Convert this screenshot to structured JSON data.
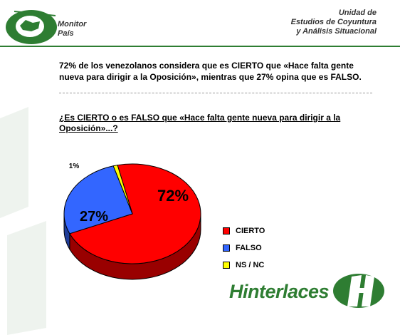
{
  "header": {
    "brand_line1": "Monitor",
    "brand_line2": "País",
    "unit_line1": "Unidad de",
    "unit_line2": "Estudios de Coyuntura",
    "unit_line3": "y Análisis Situacional"
  },
  "headline": "72% de los venezolanos considera que es CIERTO que «Hace falta gente nueva para dirigir a la Oposición», mientras que 27% opina que es FALSO.",
  "question": "¿Es CIERTO o es FALSO que «Hace falta gente nueva para dirigir a la Oposición»...?",
  "footer": {
    "brand": "Hinterlaces"
  },
  "colors": {
    "cierto": "#ff0000",
    "falso": "#3366ff",
    "nsnc": "#ffff00",
    "brand_green": "#2e7d32"
  },
  "chart_data": {
    "type": "pie",
    "categories": [
      "CIERTO",
      "FALSO",
      "NS / NC"
    ],
    "values": [
      72,
      27,
      1
    ],
    "labels": [
      "72%",
      "27%",
      "1%"
    ],
    "legend": "right"
  }
}
